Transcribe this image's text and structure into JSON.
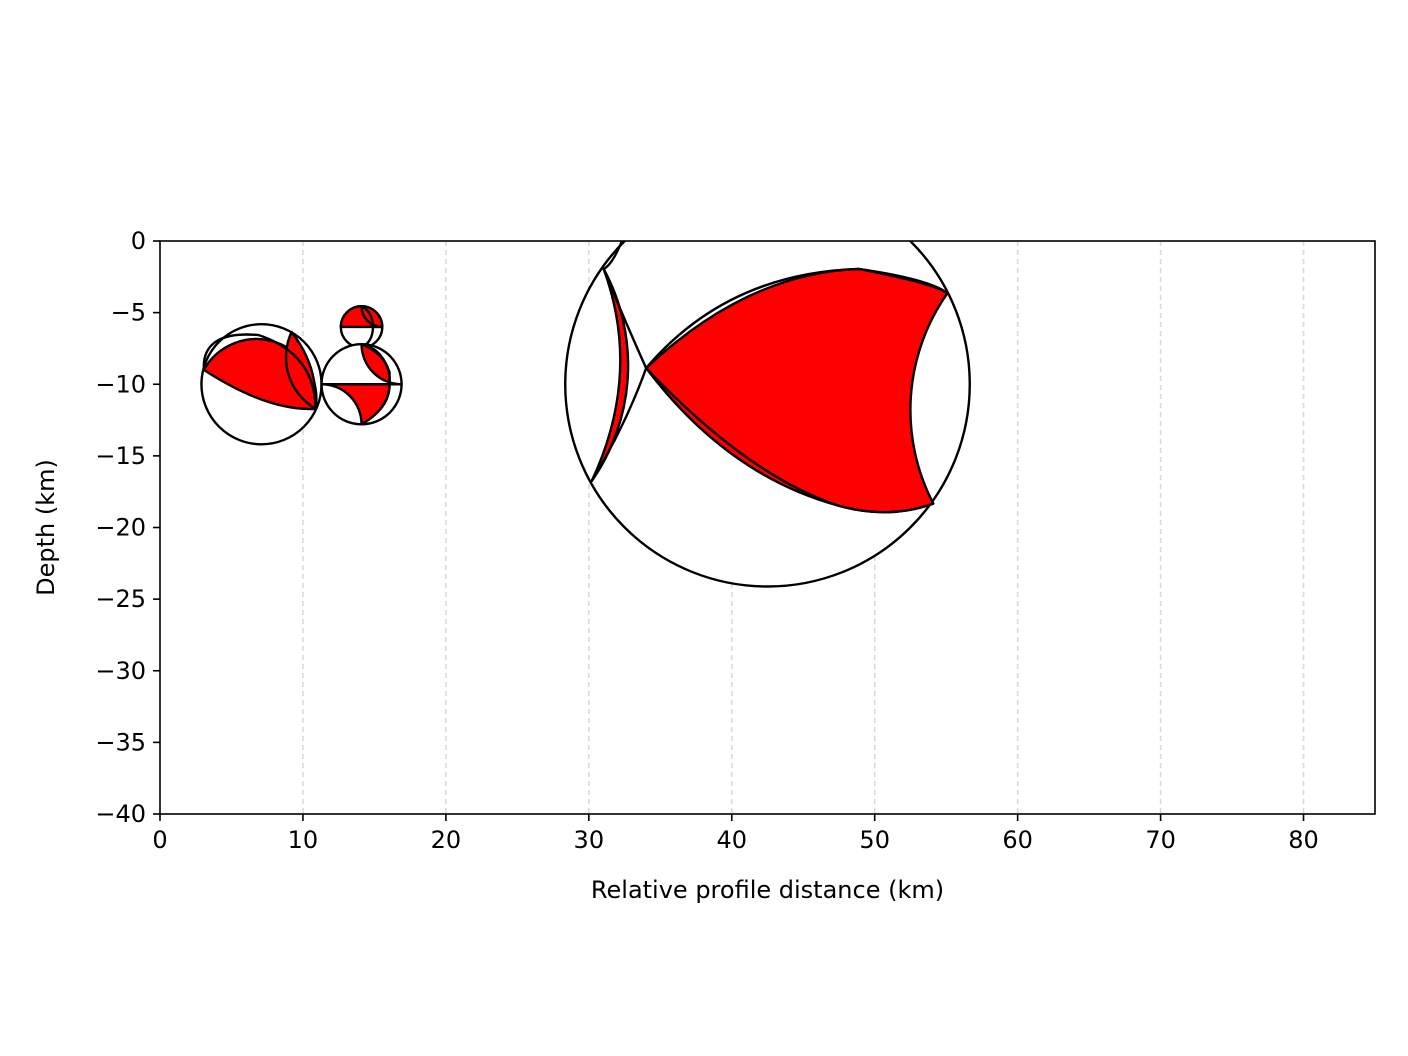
{
  "chart_data": {
    "type": "scatter",
    "title": "",
    "xlabel": "Relative profile distance (km)",
    "ylabel": "Depth (km)",
    "xlim": [
      0,
      85
    ],
    "ylim": [
      -40,
      0
    ],
    "xticks": [
      0,
      10,
      20,
      30,
      40,
      50,
      60,
      70,
      80
    ],
    "xtick_labels": [
      "0",
      "10",
      "20",
      "30",
      "40",
      "50",
      "60",
      "70",
      "80"
    ],
    "yticks": [
      0,
      -5,
      -10,
      -15,
      -20,
      -25,
      -30,
      -35,
      -40
    ],
    "ytick_labels": [
      "0",
      "−5",
      "−10",
      "−15",
      "−20",
      "−25",
      "−30",
      "−35",
      "−40"
    ],
    "grid": "x-only, dashed",
    "compression_color": "#ff0000",
    "dilatation_color": "#ffffff",
    "outline_color": "#000000",
    "series": [
      {
        "mark": "beachball",
        "points": [
          {
            "x": 7.1,
            "y": -10.0,
            "size_km": 8.4
          },
          {
            "x": 14.1,
            "y": -6.0,
            "size_km": 2.9
          },
          {
            "x": 14.1,
            "y": -10.0,
            "size_km": 5.6
          },
          {
            "x": 42.5,
            "y": -10.0,
            "size_km": 28.3
          }
        ]
      }
    ]
  }
}
